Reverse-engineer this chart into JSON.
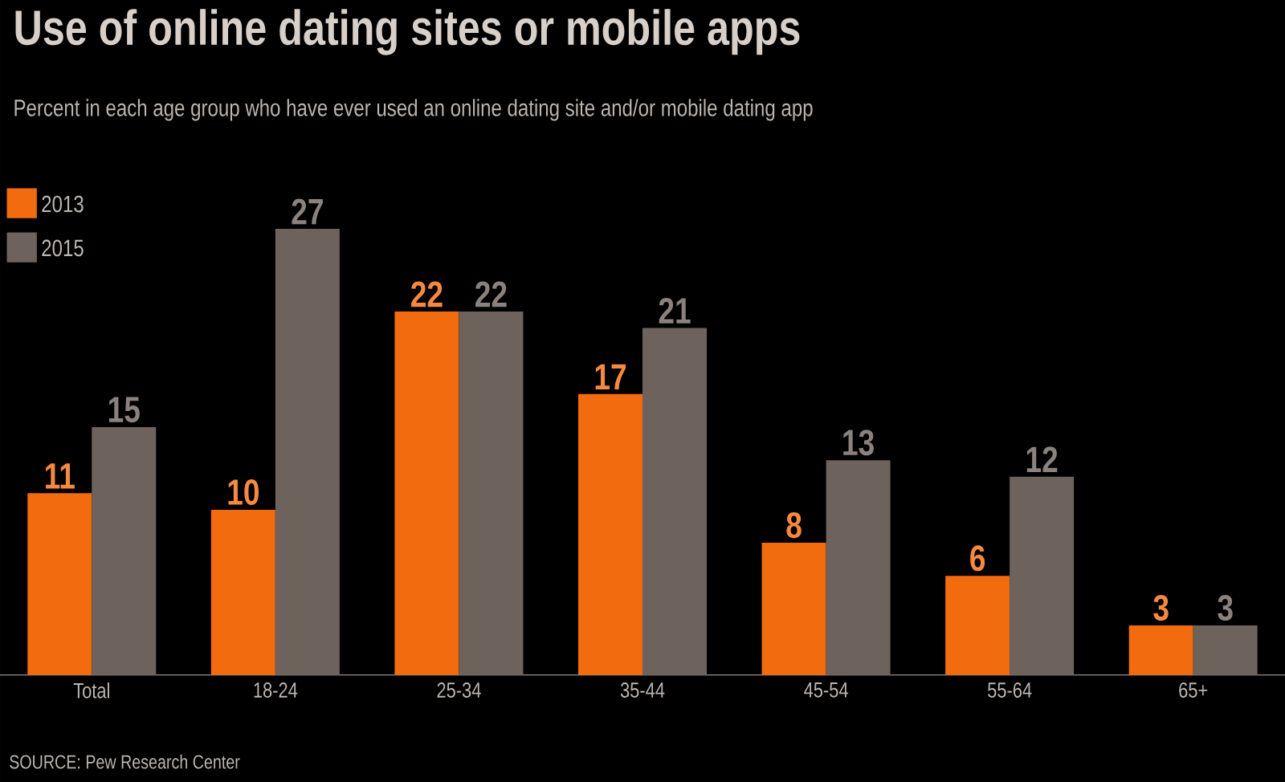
{
  "chart_data": {
    "type": "bar",
    "title": "Use of online dating sites or mobile apps",
    "subtitle": "Percent in each age group who have ever used an online dating site and/or mobile dating app",
    "categories": [
      "Total",
      "18-24",
      "25-34",
      "35-44",
      "45-54",
      "55-64",
      "65+"
    ],
    "series": [
      {
        "name": "2013",
        "color": "#f26b0f",
        "values": [
          11,
          10,
          22,
          17,
          8,
          6,
          3
        ]
      },
      {
        "name": "2015",
        "color": "#6e625d",
        "values": [
          15,
          27,
          22,
          21,
          13,
          12,
          3
        ]
      }
    ],
    "data_labels": true,
    "legend": "top left",
    "annotations": [
      "SOURCE: Pew Research Center"
    ]
  }
}
